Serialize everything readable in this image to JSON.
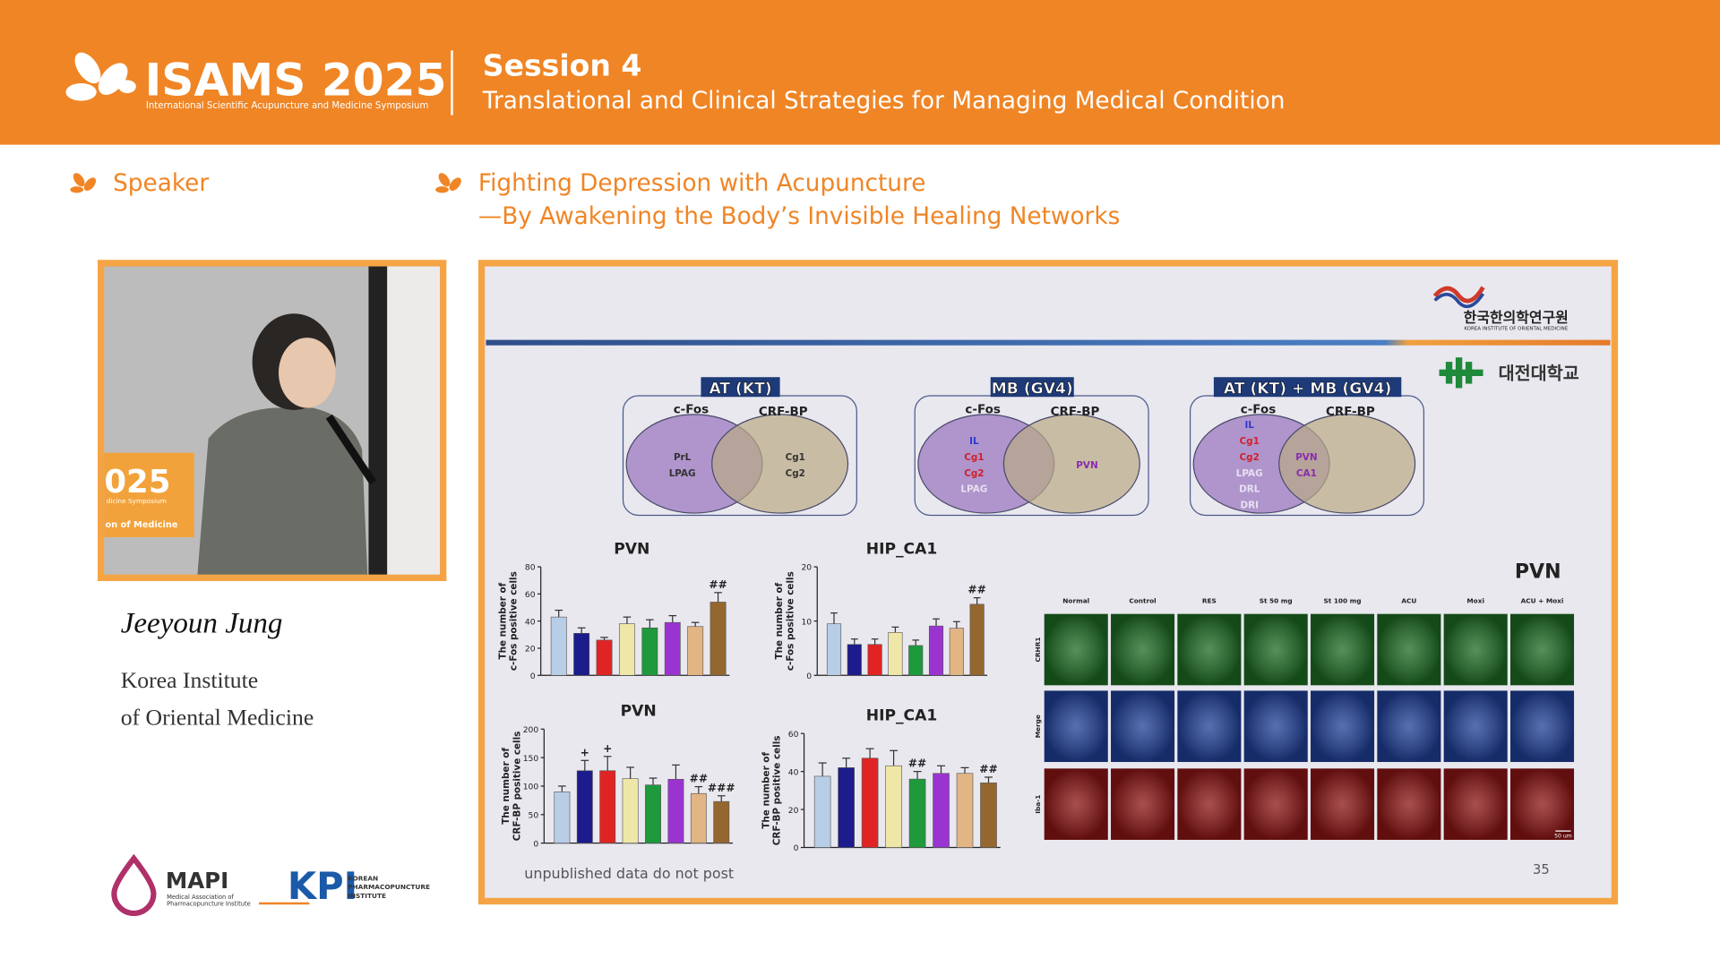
{
  "header": {
    "logo": "ISAMS 2025",
    "logo_subtitle": "International Scientific Acupuncture and Medicine Symposium",
    "session": "Session 4",
    "session_title": "Translational and Clinical Strategies for Managing Medical Condition"
  },
  "speaker": {
    "label": "Speaker",
    "name": "Jeeyoun Jung",
    "affiliation": [
      "Korea Institute",
      "of Oriental Medicine"
    ]
  },
  "talk": {
    "title": [
      "Fighting Depression with Acupuncture",
      "—By Awakening the Body’s Invisible Healing Networks"
    ]
  },
  "photo": {
    "banner": [
      "025",
      "dicine Symposium",
      "on of Medicine"
    ]
  },
  "sponsors": [
    {
      "name": "MAPI",
      "subtitle": [
        "Medical Association of",
        "Pharmacopuncture Institute"
      ]
    },
    {
      "name": "KPI",
      "subtitle": [
        "KOREAN",
        "PHARMACOPUNCTURE",
        "INSTITUTE"
      ]
    }
  ],
  "slide": {
    "logos": [
      "한국한의학연구원",
      "KOREA INSTITUTE OF ORIENTAL MEDICINE",
      "대전대학교"
    ],
    "venns": [
      {
        "title": "AT (KT)",
        "left": "c-Fos",
        "right": "CRF-BP",
        "left_items": [
          {
            "text": "PrL",
            "color": "#333333"
          },
          {
            "text": "LPAG",
            "color": "#333333"
          }
        ],
        "overlap_items": [],
        "right_items": [
          {
            "text": "Cg1",
            "color": "#333333"
          },
          {
            "text": "Cg2",
            "color": "#333333"
          }
        ]
      },
      {
        "title": "MB (GV4)",
        "left": "c-Fos",
        "right": "CRF-BP",
        "left_items": [
          {
            "text": "IL",
            "color": "#2a3ad0"
          },
          {
            "text": "Cg1",
            "color": "#d0202a"
          },
          {
            "text": "Cg2",
            "color": "#d0202a"
          },
          {
            "text": "LPAG",
            "color": "#e8e0f0"
          }
        ],
        "overlap_items": [],
        "right_items": [
          {
            "text": "PVN",
            "color": "#8a2ab0"
          }
        ]
      },
      {
        "title": "AT (KT) + MB (GV4)",
        "left": "c-Fos",
        "right": "CRF-BP",
        "left_items": [
          {
            "text": "IL",
            "color": "#2a3ad0"
          },
          {
            "text": "Cg1",
            "color": "#d0202a"
          },
          {
            "text": "Cg2",
            "color": "#d0202a"
          },
          {
            "text": "LPAG",
            "color": "#e8e0f0"
          },
          {
            "text": "DRL",
            "color": "#e8e0f0"
          },
          {
            "text": "DRI",
            "color": "#e8e0f0"
          }
        ],
        "overlap_items": [
          {
            "text": "PVN",
            "color": "#8a2ab0"
          },
          {
            "text": "CA1",
            "color": "#8a2ab0"
          }
        ],
        "right_items": []
      }
    ],
    "charts": [
      {
        "type": "bar",
        "title": "PVN",
        "ylabel": [
          "The number of",
          "c-Fos positive cells"
        ],
        "ylim": [
          0,
          80
        ],
        "yticks": [
          0,
          20,
          40,
          60,
          80
        ],
        "values": [
          43,
          31,
          26,
          38,
          35,
          39,
          36,
          54
        ],
        "errors": [
          5,
          4,
          2,
          5,
          6,
          5,
          3,
          7
        ],
        "marks": [
          null,
          null,
          null,
          null,
          null,
          null,
          null,
          "##"
        ],
        "colors": [
          "#b8cde6",
          "#1c1c8c",
          "#e02424",
          "#efe7a8",
          "#1e9a3c",
          "#9a34d0",
          "#e2b584",
          "#946630"
        ]
      },
      {
        "type": "bar",
        "title": "HIP_CA1",
        "ylabel": [
          "The number of",
          "c-Fos positive cells"
        ],
        "ylim": [
          0,
          20
        ],
        "yticks": [
          0,
          10,
          20
        ],
        "values": [
          9.5,
          5.7,
          5.7,
          7.9,
          5.5,
          9.1,
          8.7,
          13.1
        ],
        "errors": [
          2,
          1,
          1,
          1,
          1,
          1.3,
          1.2,
          1.2
        ],
        "marks": [
          null,
          null,
          null,
          null,
          null,
          null,
          null,
          "##"
        ],
        "colors": [
          "#b8cde6",
          "#1c1c8c",
          "#e02424",
          "#efe7a8",
          "#1e9a3c",
          "#9a34d0",
          "#e2b584",
          "#946630"
        ]
      },
      {
        "type": "bar",
        "title": "PVN",
        "ylabel": [
          "The number of",
          "CRF-BP positive cells"
        ],
        "ylim": [
          0,
          200
        ],
        "yticks": [
          0,
          50,
          100,
          150,
          200
        ],
        "values": [
          90,
          127,
          127,
          113,
          102,
          112,
          87,
          73
        ],
        "errors": [
          10,
          18,
          25,
          20,
          12,
          25,
          12,
          10
        ],
        "marks": [
          null,
          "+",
          "+",
          null,
          null,
          null,
          "##",
          "###"
        ],
        "colors": [
          "#b8cde6",
          "#1c1c8c",
          "#e02424",
          "#efe7a8",
          "#1e9a3c",
          "#9a34d0",
          "#e2b584",
          "#946630"
        ]
      },
      {
        "type": "bar",
        "title": "HIP_CA1",
        "ylabel": [
          "The number of",
          "CRF-BP positive cells"
        ],
        "ylim": [
          0,
          60
        ],
        "yticks": [
          0,
          20,
          40,
          60
        ],
        "values": [
          37.5,
          42,
          47,
          43,
          36,
          39,
          39,
          34
        ],
        "errors": [
          7,
          5,
          5,
          8,
          4,
          4,
          3,
          3
        ],
        "marks": [
          null,
          null,
          null,
          null,
          "##",
          null,
          null,
          "##"
        ],
        "colors": [
          "#b8cde6",
          "#1c1c8c",
          "#e02424",
          "#efe7a8",
          "#1e9a3c",
          "#9a34d0",
          "#e2b584",
          "#946630"
        ]
      }
    ],
    "micrographs": {
      "title": "PVN",
      "columns": [
        "Normal",
        "Control",
        "RES",
        "St 50 mg",
        "St 100 mg",
        "ACU",
        "Moxi",
        "ACU + Moxi"
      ],
      "rows": [
        {
          "label": "CRHR1",
          "color": "#1d6a22"
        },
        {
          "label": "Merge",
          "color": "#1f3f96"
        },
        {
          "label": "Iba-1",
          "color": "#8a1414"
        }
      ],
      "scale_bar": "50 um"
    },
    "footer": "unpublished data do not post",
    "page_number": "35"
  }
}
